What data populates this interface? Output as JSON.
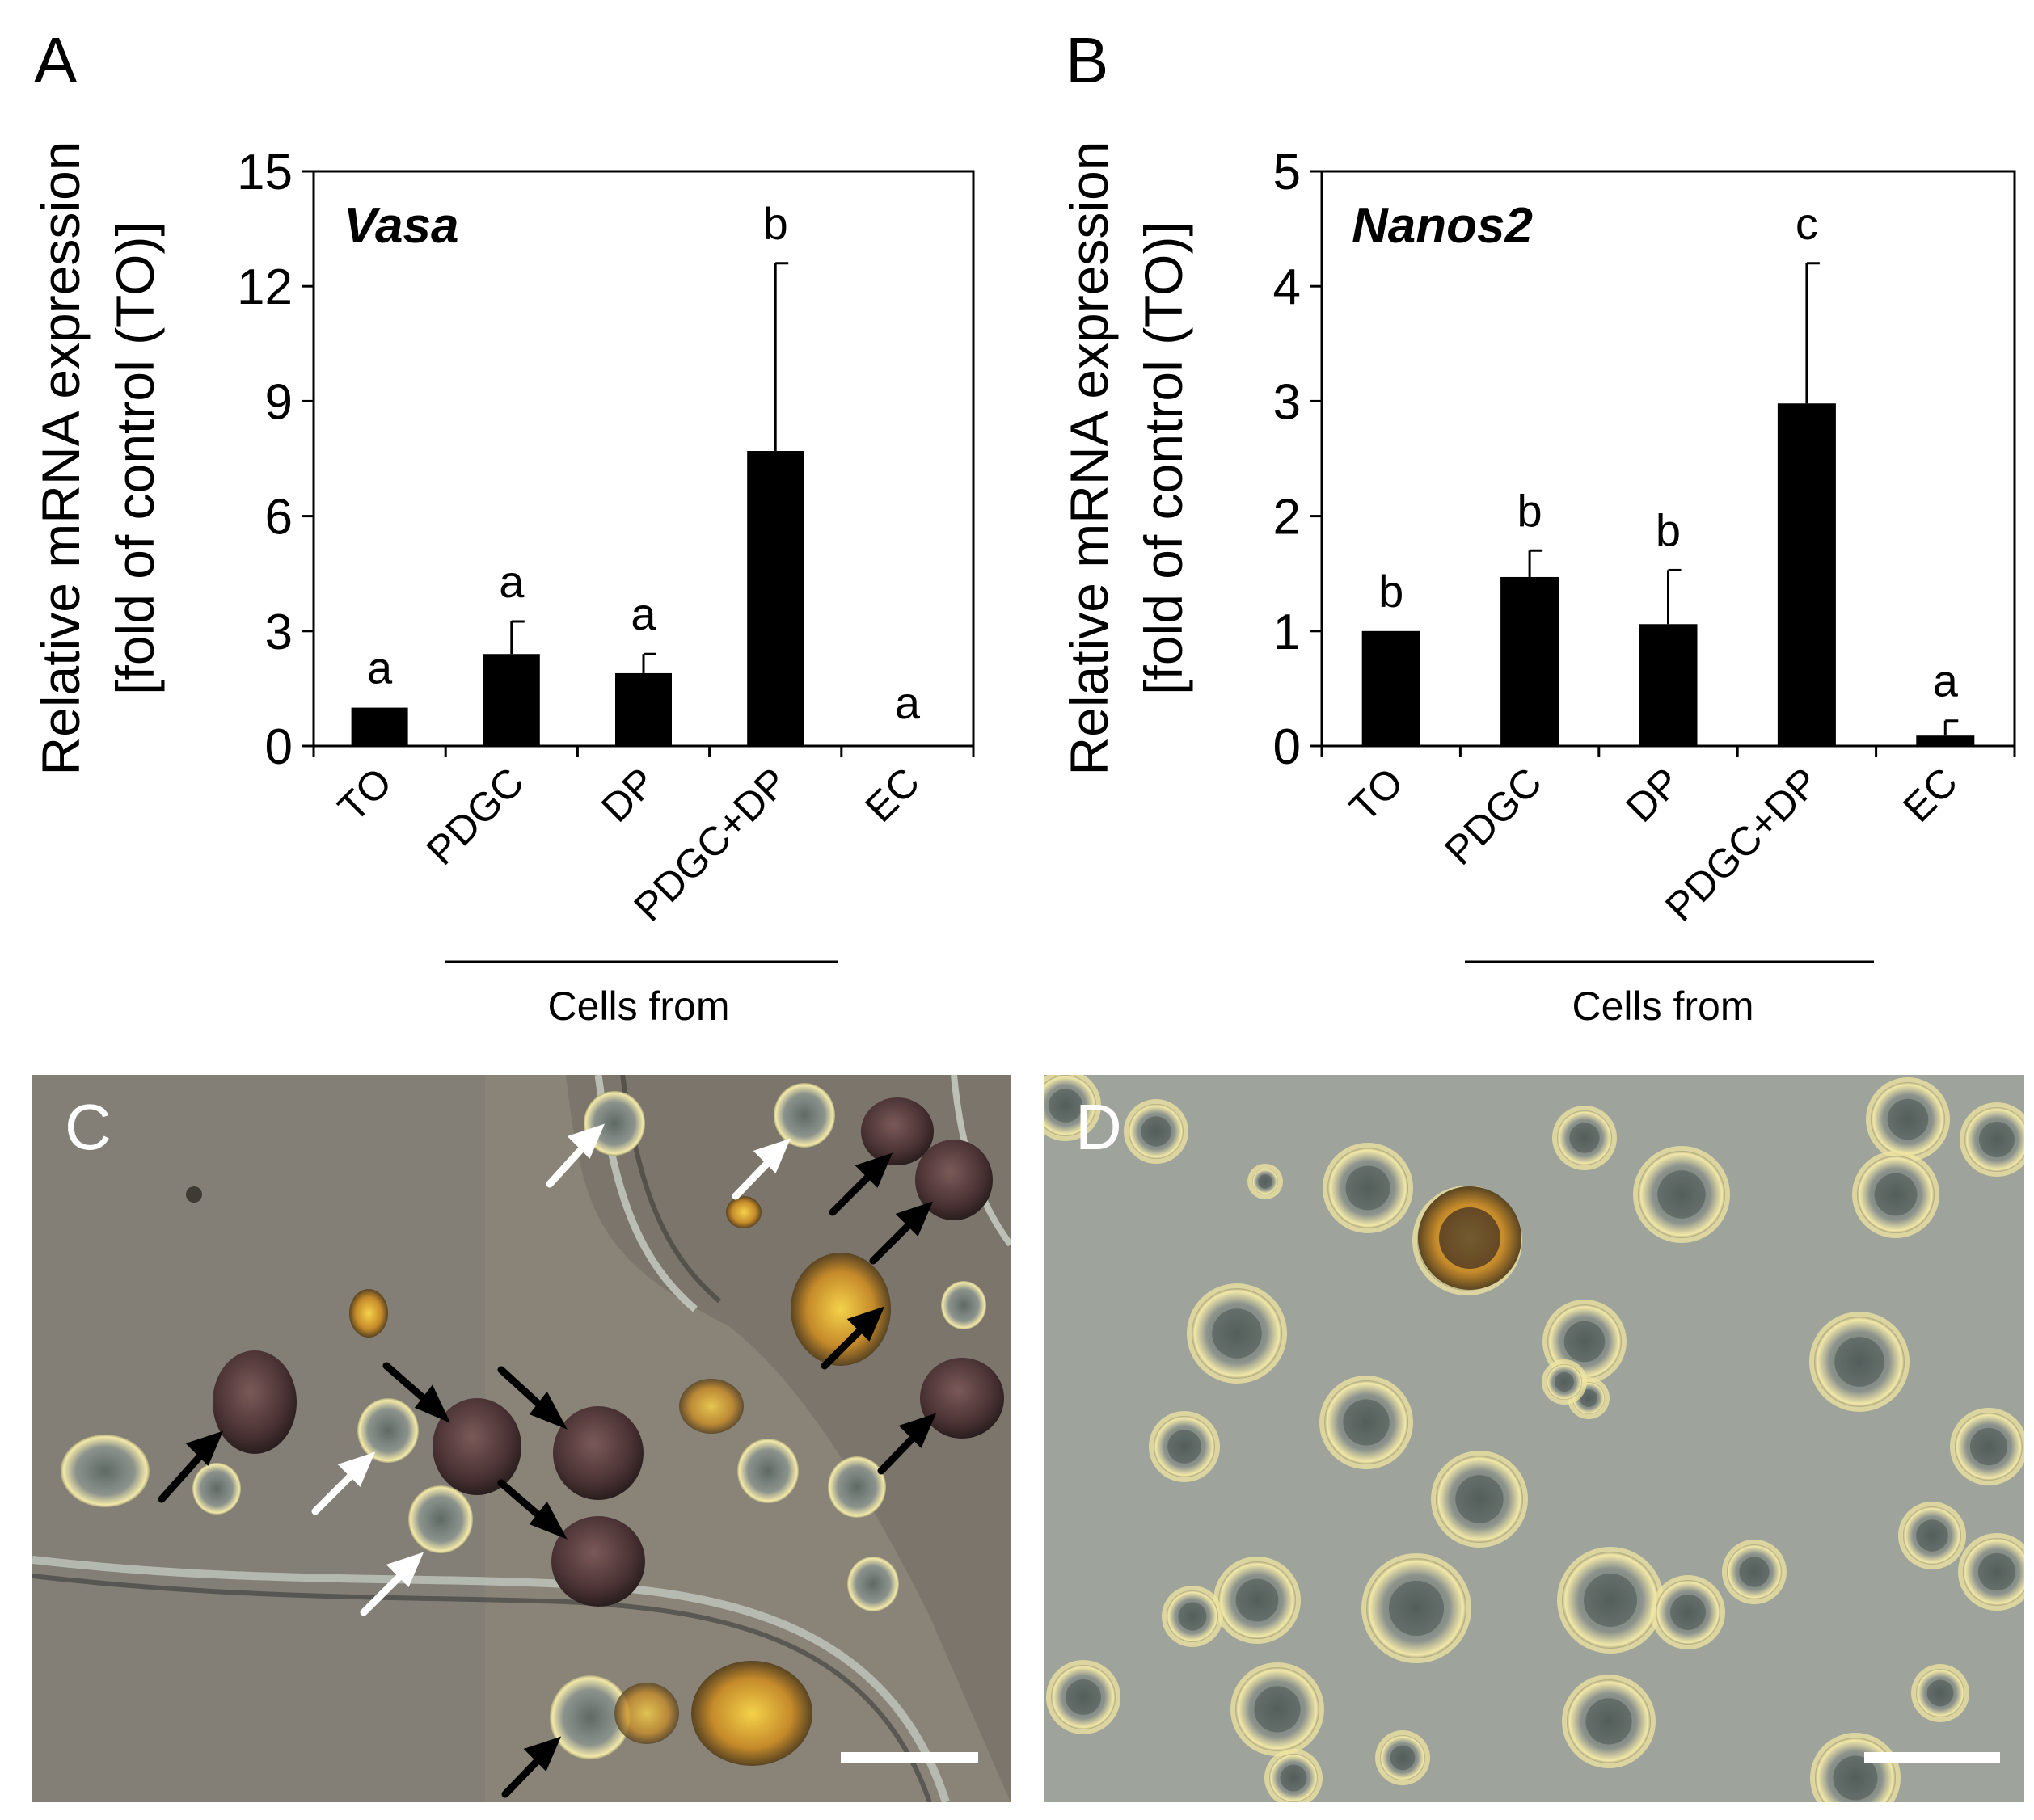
{
  "panels": {
    "A": "A",
    "B": "B",
    "C": "C",
    "D": "D"
  },
  "colors": {
    "bar": "#000000",
    "axis": "#000000",
    "micro_bg_c": "#8a8478",
    "micro_bg_d": "#9ea39b"
  },
  "chart_data": [
    {
      "type": "bar",
      "panel": "A",
      "gene": "Vasa",
      "ylabel_line1": "Relative mRNA expression",
      "ylabel_line2": "[fold of control (TO)]",
      "ylim": [
        0,
        15
      ],
      "yticks": [
        "0",
        "3",
        "6",
        "9",
        "12",
        "15"
      ],
      "categories": [
        "TO",
        "PDGC",
        "DP",
        "PDGC+DP",
        "EC"
      ],
      "values": [
        1.0,
        2.4,
        1.9,
        7.7,
        0.0
      ],
      "errors": [
        0.0,
        0.85,
        0.5,
        4.9,
        0.0
      ],
      "significance": [
        "a",
        "a",
        "a",
        "b",
        "a"
      ],
      "group_label": "Cells from",
      "grid": false
    },
    {
      "type": "bar",
      "panel": "B",
      "gene": "Nanos2",
      "ylabel_line1": "Relative mRNA expression",
      "ylabel_line2": "[fold of control (TO)]",
      "ylim": [
        0,
        5
      ],
      "yticks": [
        "0",
        "1",
        "2",
        "3",
        "4",
        "5"
      ],
      "categories": [
        "TO",
        "PDGC",
        "DP",
        "PDGC+DP",
        "EC"
      ],
      "values": [
        1.0,
        1.47,
        1.06,
        2.98,
        0.09
      ],
      "errors": [
        0.0,
        0.23,
        0.47,
        1.22,
        0.13
      ],
      "significance": [
        "b",
        "b",
        "b",
        "c",
        "a"
      ],
      "group_label": "Cells from",
      "grid": false
    }
  ]
}
